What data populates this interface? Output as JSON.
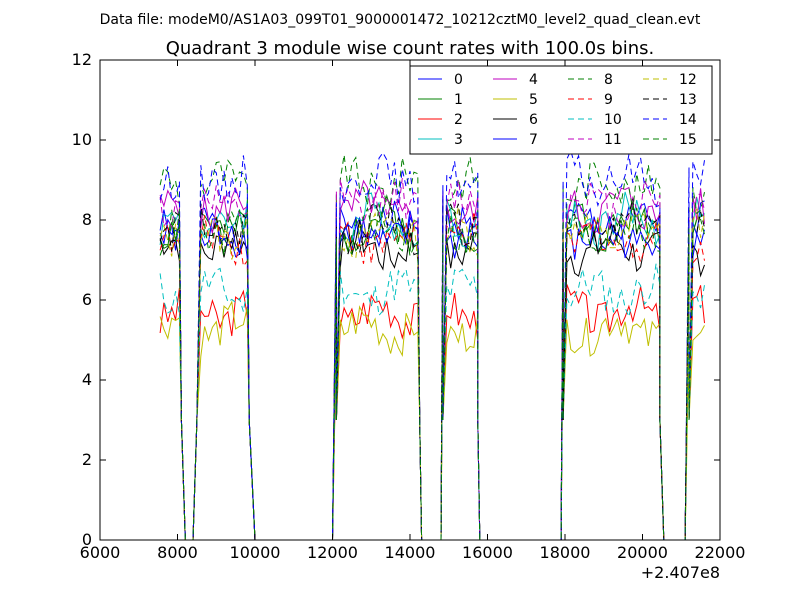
{
  "suptitle": "Data file: modeM0/AS1A03_099T01_9000001472_10212cztM0_level2_quad_clean.evt",
  "chart_data": {
    "type": "line",
    "title": "Quadrant 3 module wise count rates with 100.0s bins.",
    "xlabel": "",
    "ylabel": "",
    "x_offset_label": "+2.407e8",
    "xlim": [
      6000,
      22000
    ],
    "ylim": [
      0,
      12
    ],
    "xticks": [
      6000,
      8000,
      10000,
      12000,
      14000,
      16000,
      18000,
      20000,
      22000
    ],
    "yticks": [
      0,
      2,
      4,
      6,
      8,
      10,
      12
    ],
    "legend_position": "top-right",
    "segments": [
      [
        7550,
        8100
      ],
      [
        8600,
        9850
      ],
      [
        12100,
        14250
      ],
      [
        14850,
        15750
      ],
      [
        17950,
        20450
      ],
      [
        21200,
        21650
      ]
    ],
    "gap_points": [
      [
        8100,
        3
      ],
      [
        8200,
        0
      ],
      [
        8400,
        0
      ],
      [
        8500,
        3
      ],
      [
        9850,
        3
      ],
      [
        10000,
        0
      ],
      [
        12000,
        0
      ],
      [
        12100,
        3
      ],
      [
        14250,
        3
      ],
      [
        14300,
        0
      ],
      [
        14800,
        0
      ],
      [
        14850,
        3
      ],
      [
        15750,
        3
      ],
      [
        15800,
        0
      ],
      [
        17900,
        0
      ],
      [
        17950,
        3
      ],
      [
        20450,
        3
      ],
      [
        20550,
        0
      ],
      [
        21100,
        0
      ],
      [
        21200,
        3
      ]
    ],
    "series": [
      {
        "name": "0",
        "color": "#0000ff",
        "style": "solid",
        "level": 7.8
      },
      {
        "name": "1",
        "color": "#008000",
        "style": "solid",
        "level": 7.9
      },
      {
        "name": "2",
        "color": "#ff0000",
        "style": "solid",
        "level": 5.7
      },
      {
        "name": "3",
        "color": "#00bfbf",
        "style": "solid",
        "level": 8.0
      },
      {
        "name": "4",
        "color": "#bf00bf",
        "style": "solid",
        "level": 8.3
      },
      {
        "name": "5",
        "color": "#bfbf00",
        "style": "solid",
        "level": 5.3
      },
      {
        "name": "6",
        "color": "#000000",
        "style": "solid",
        "level": 7.3
      },
      {
        "name": "7",
        "color": "#0000ff",
        "style": "solid",
        "level": 7.6
      },
      {
        "name": "8",
        "color": "#008000",
        "style": "dashed",
        "level": 8.9
      },
      {
        "name": "9",
        "color": "#ff0000",
        "style": "dashed",
        "level": 7.5
      },
      {
        "name": "10",
        "color": "#00bfbf",
        "style": "dashed",
        "level": 6.2
      },
      {
        "name": "11",
        "color": "#bf00bf",
        "style": "dashed",
        "level": 8.4
      },
      {
        "name": "12",
        "color": "#bfbf00",
        "style": "dashed",
        "level": 7.7
      },
      {
        "name": "13",
        "color": "#000000",
        "style": "dashed",
        "level": 7.8
      },
      {
        "name": "14",
        "color": "#0000ff",
        "style": "dashed",
        "level": 9.0
      },
      {
        "name": "15",
        "color": "#008000",
        "style": "dashed",
        "level": 7.7
      }
    ]
  }
}
